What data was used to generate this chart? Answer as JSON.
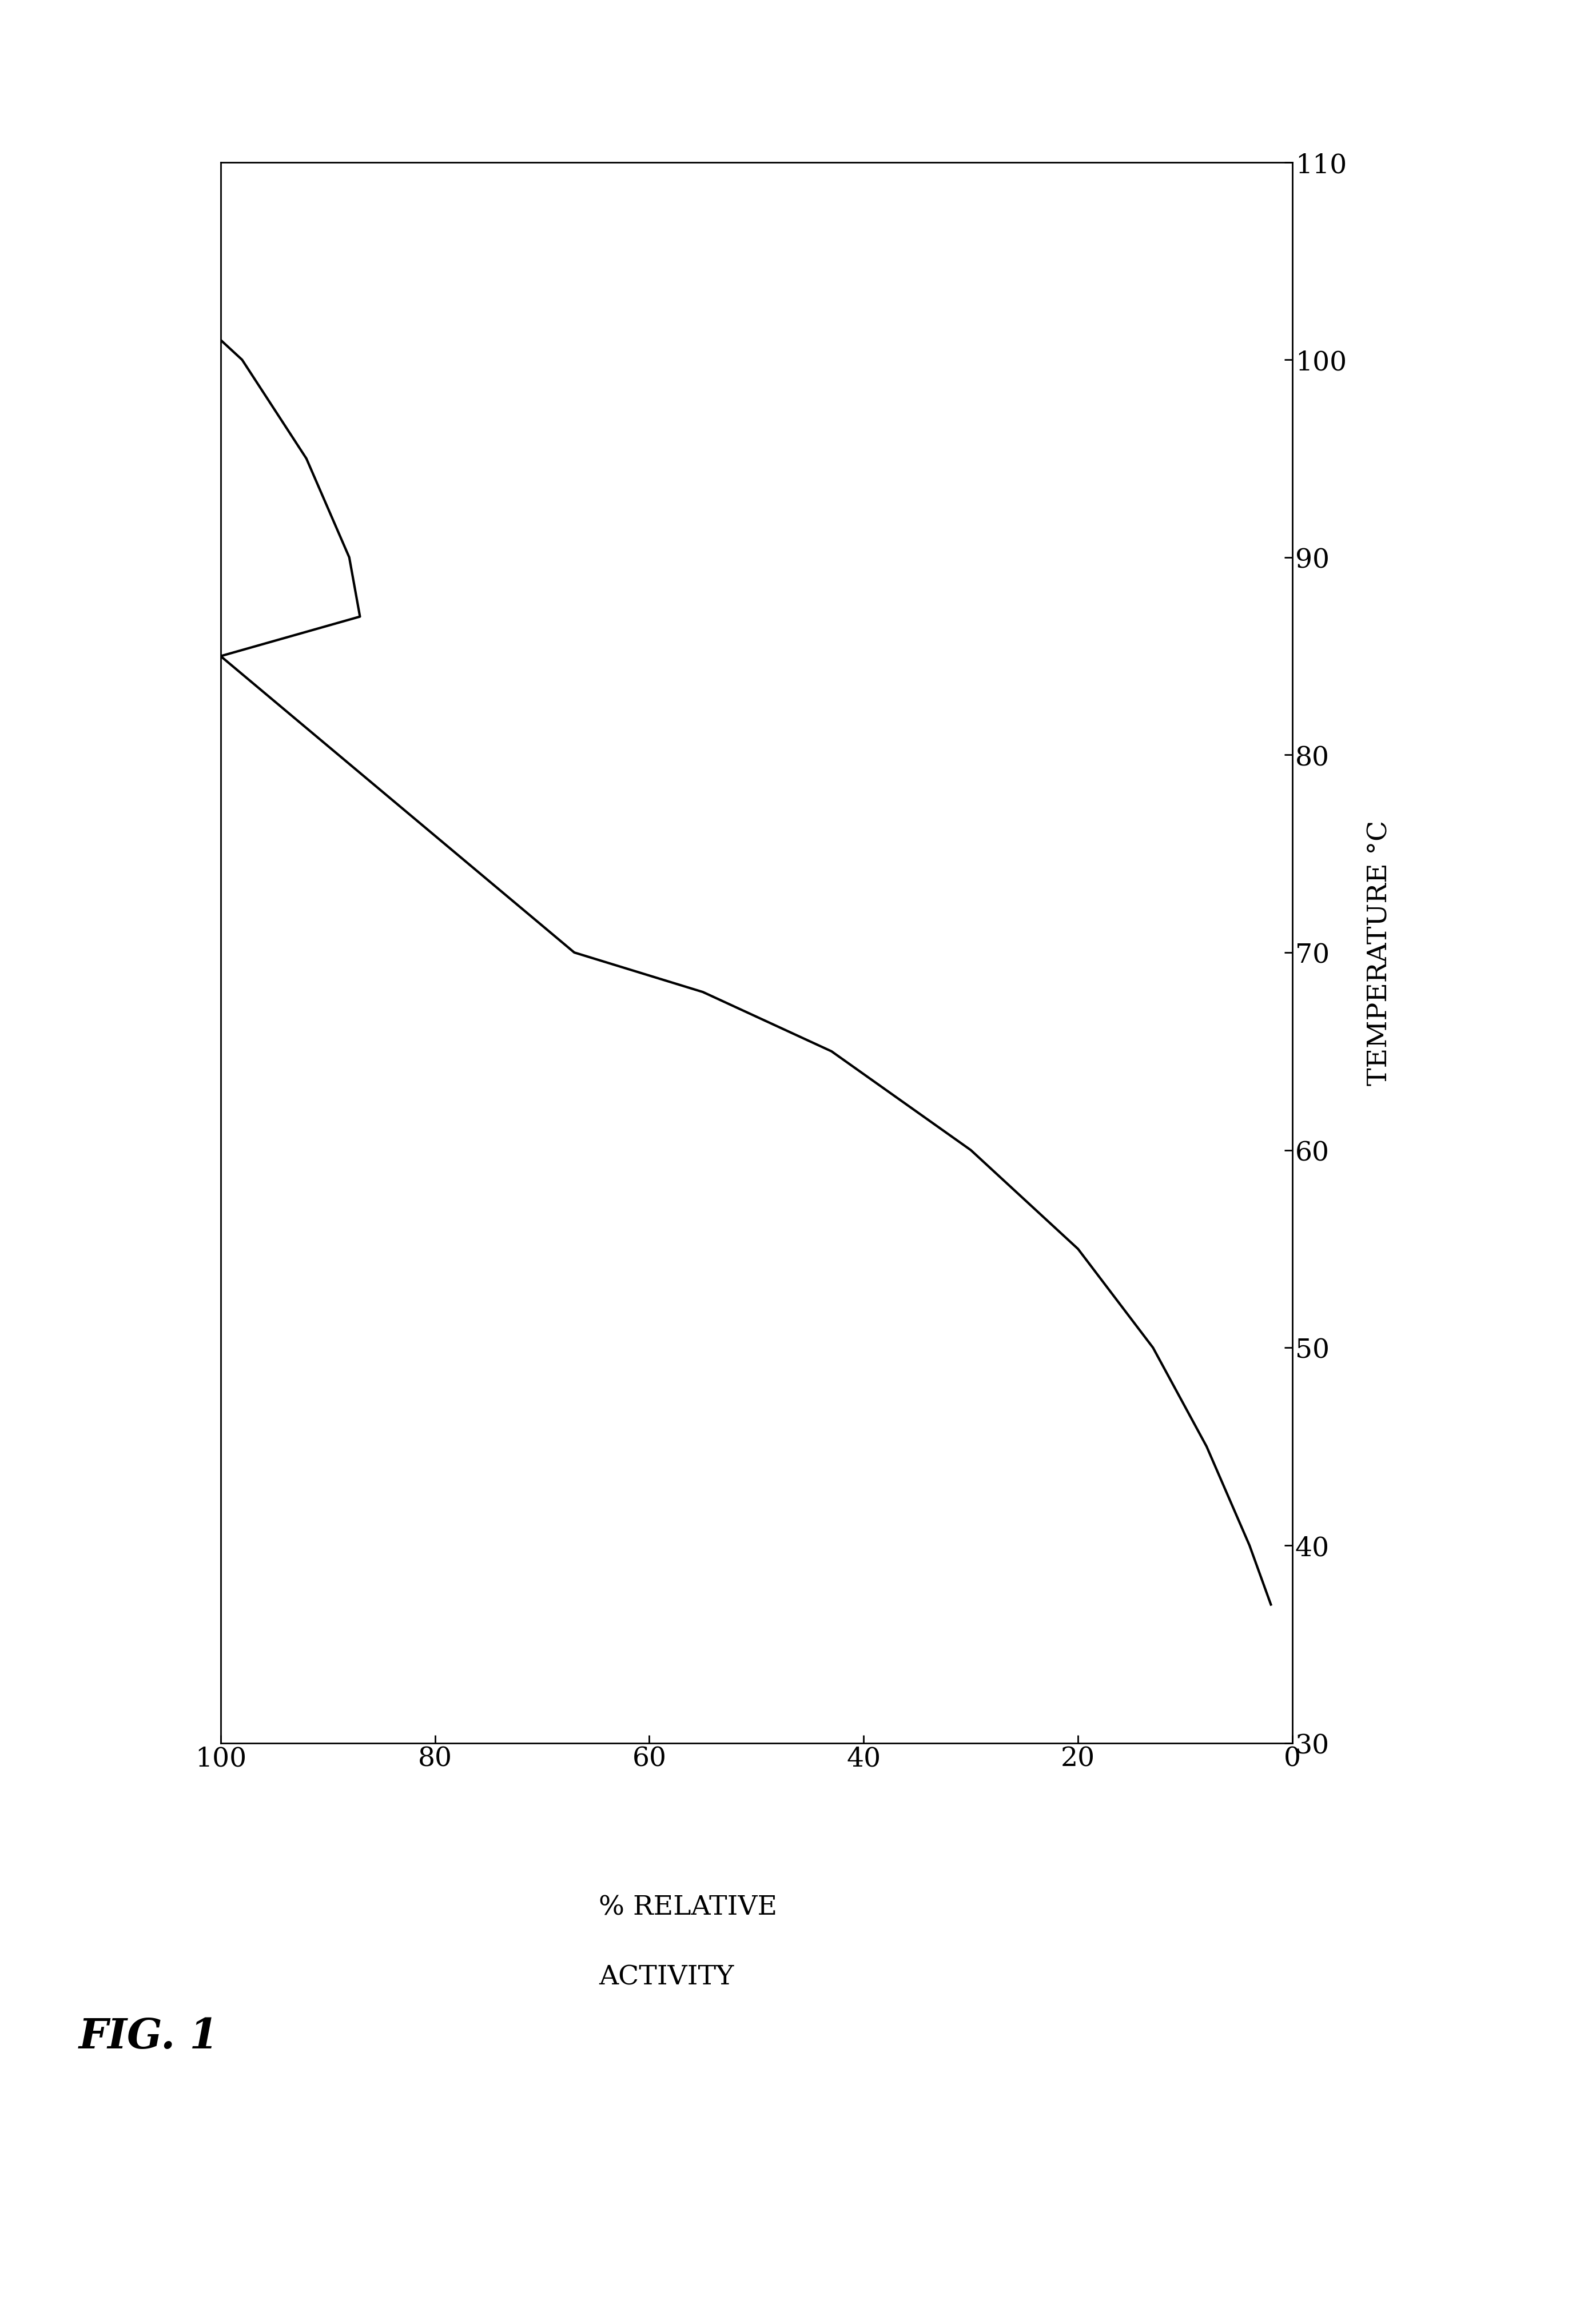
{
  "ylabel_right": "TEMPERATURE °C",
  "xlabel_bottom": "% RELATIVE ACTIVITY",
  "x_range": [
    0,
    100
  ],
  "y_range": [
    30,
    110
  ],
  "x_ticks": [
    0,
    20,
    40,
    60,
    80,
    100
  ],
  "y_ticks": [
    30,
    40,
    50,
    60,
    70,
    80,
    90,
    100,
    110
  ],
  "curve_temp": [
    37,
    40,
    45,
    50,
    55,
    60,
    65,
    68,
    70,
    85,
    87,
    90,
    95,
    100,
    105
  ],
  "curve_activity": [
    2,
    4,
    8,
    13,
    20,
    30,
    43,
    55,
    67,
    100,
    87,
    88,
    92,
    98,
    108
  ],
  "line_color": "#000000",
  "line_width": 3.0,
  "background_color": "#ffffff",
  "fig_label": "FIG. 1",
  "fig_label_fontsize": 52,
  "tick_fontsize": 34,
  "axis_label_fontsize": 34,
  "pct_relative_label": "% RELATIVE",
  "activity_label": "ACTIVITY"
}
